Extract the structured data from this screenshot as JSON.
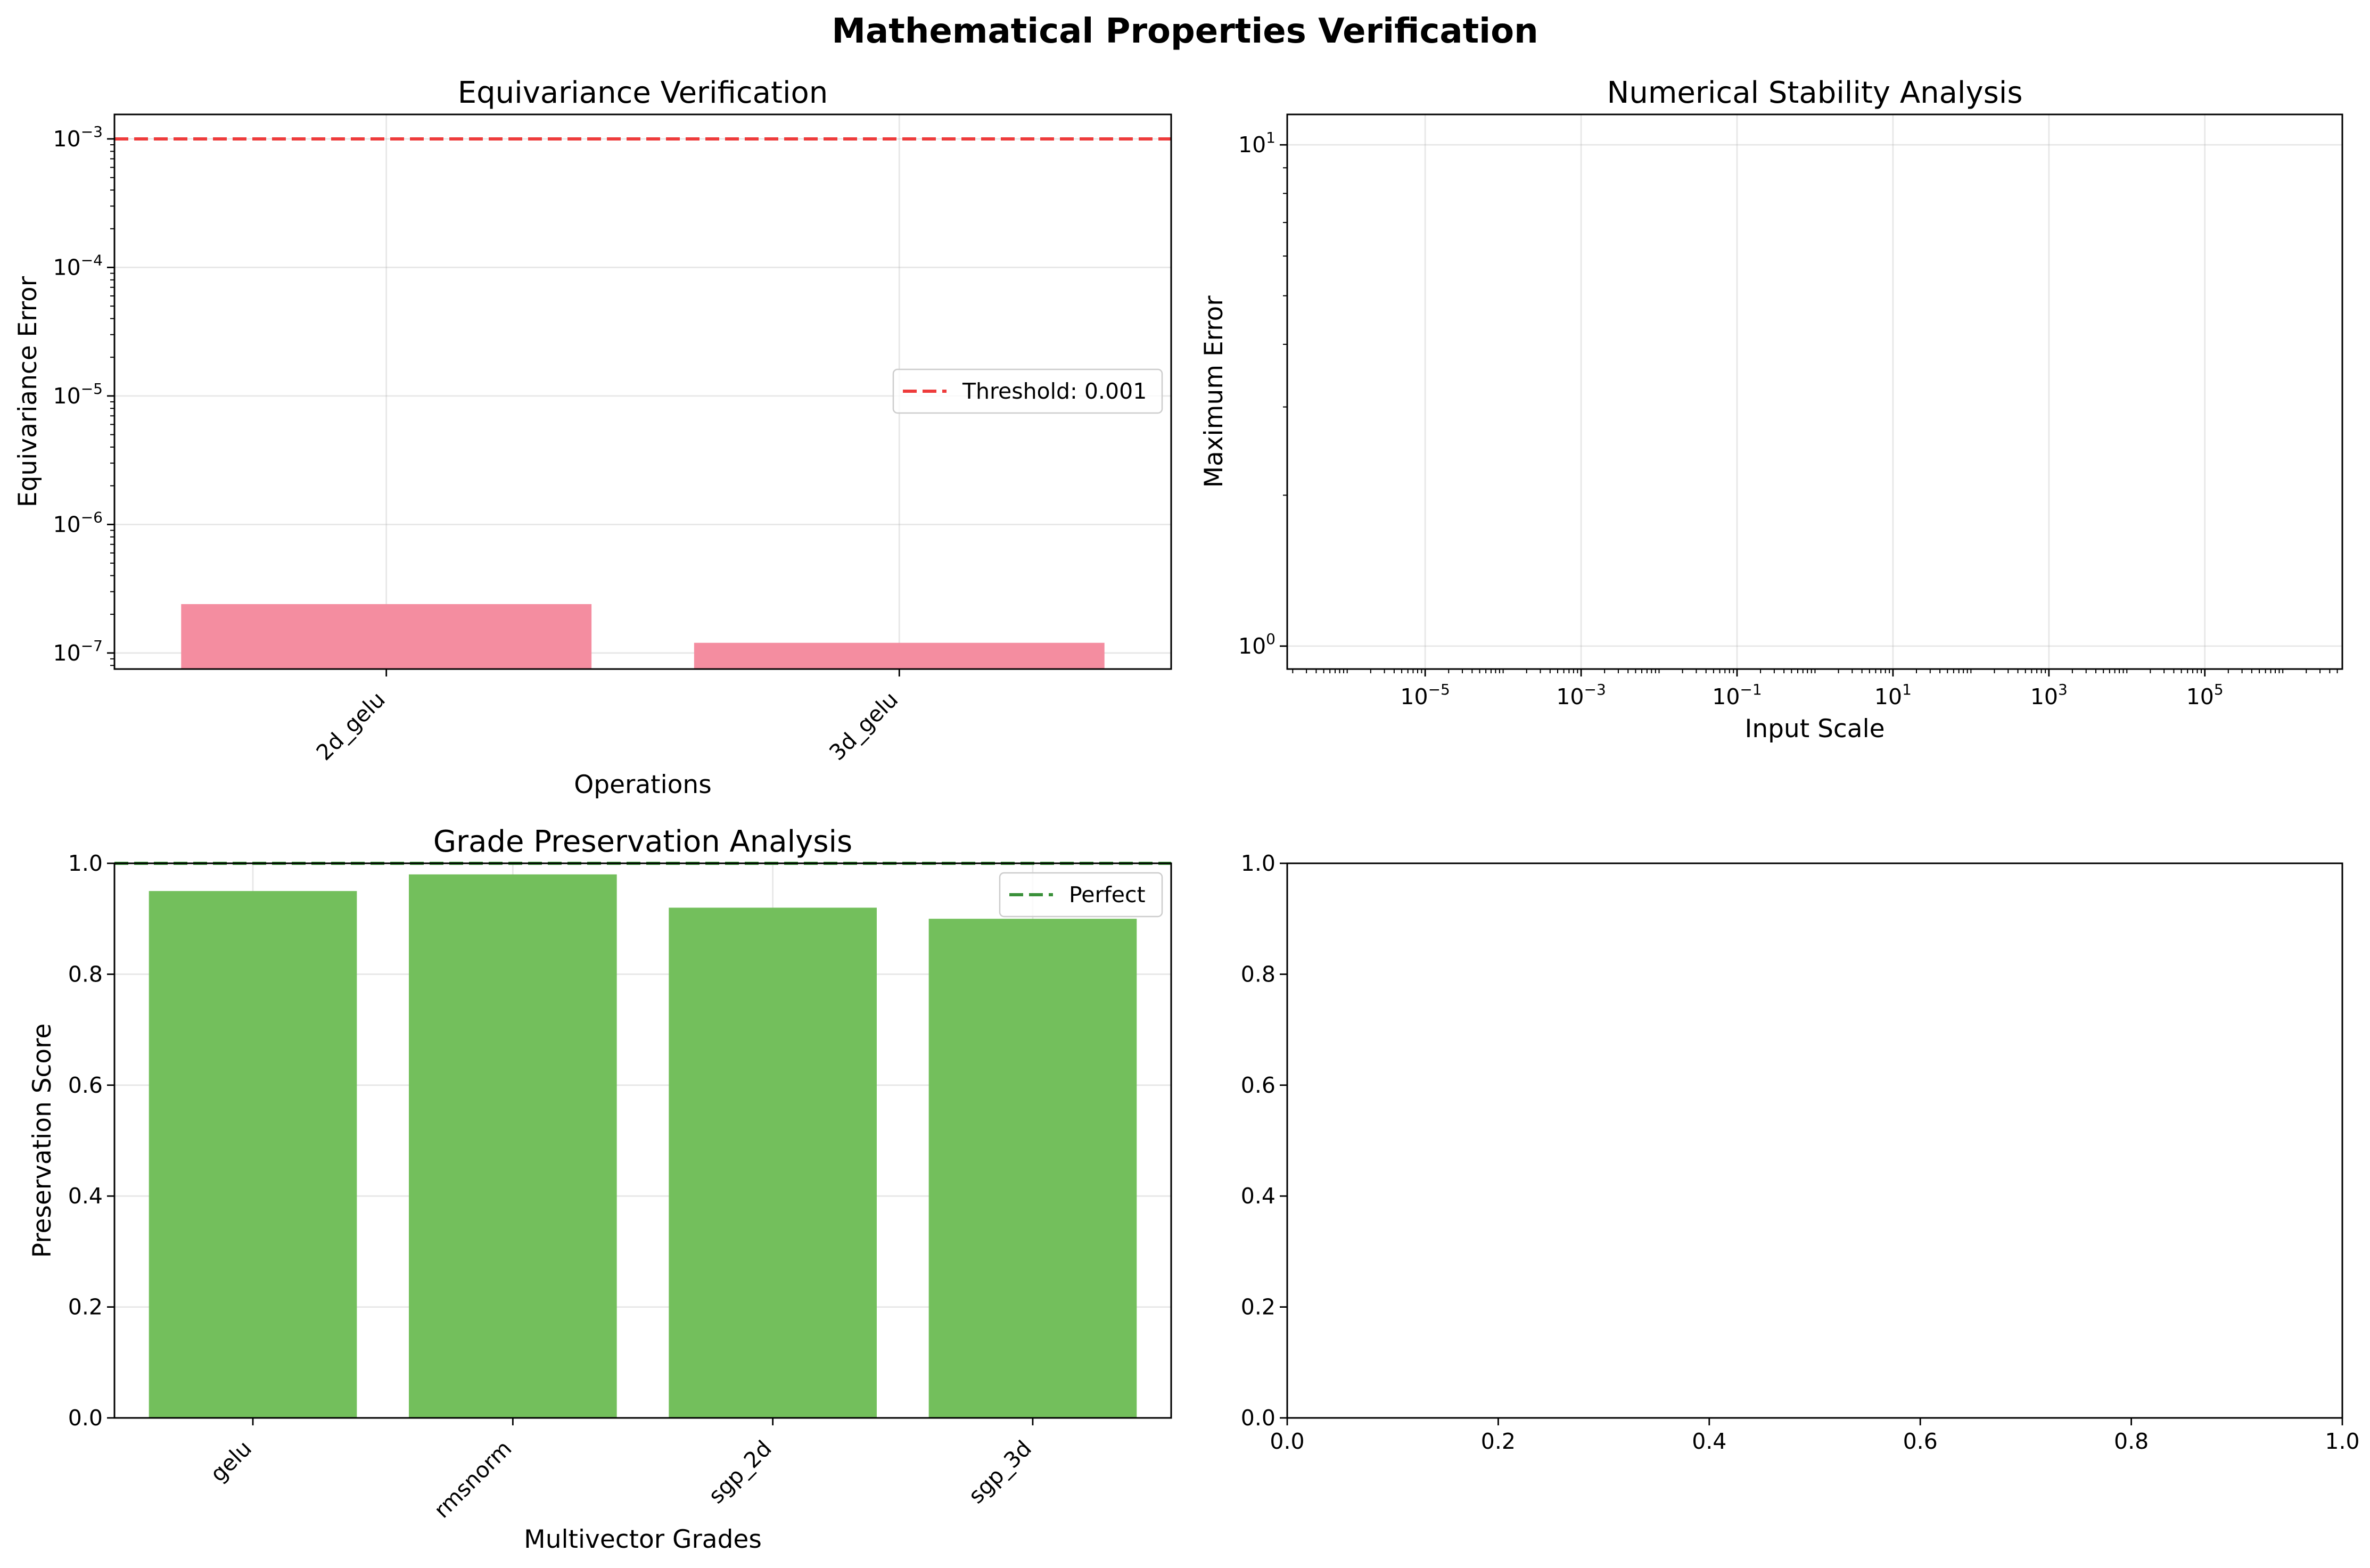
{
  "figure_title": "Mathematical Properties Verification",
  "colors": {
    "equivariance_bar": "#f48da0",
    "preservation_bar": "#73bf5c",
    "threshold_line": "#ee3b3b",
    "perfect_line": "#3a913a"
  },
  "chart_data": [
    {
      "type": "bar",
      "title": "Equivariance Verification",
      "xlabel": "Operations",
      "ylabel": "Equivariance Error",
      "yscale": "log",
      "ylim": [
        7.5e-08,
        0.00155
      ],
      "yticks": [
        "10^-7",
        "10^-6",
        "10^-5",
        "10^-4",
        "10^-3"
      ],
      "categories": [
        "2d_gelu",
        "3d_gelu"
      ],
      "values": [
        2.4e-07,
        1.2e-07
      ],
      "reference_line": {
        "label": "Threshold: 0.001",
        "value": 0.001,
        "style": "dashed"
      },
      "legend": "center-right",
      "grid": true
    },
    {
      "type": "line",
      "title": "Numerical Stability Analysis",
      "xlabel": "Input Scale",
      "ylabel": "Maximum Error",
      "xscale": "log",
      "yscale": "log",
      "xlim": [
        1.7e-07,
        5800000.0
      ],
      "ylim": [
        0.9,
        11.5
      ],
      "xticks": [
        "10^-5",
        "10^-3",
        "10^-1",
        "10^1",
        "10^3",
        "10^5"
      ],
      "yticks": [
        "10^0",
        "10^1"
      ],
      "series": [],
      "grid": true
    },
    {
      "type": "bar",
      "title": "Grade Preservation Analysis",
      "xlabel": "Multivector Grades",
      "ylabel": "Preservation Score",
      "ylim": [
        0,
        1.0
      ],
      "yticks": [
        "0.0",
        "0.2",
        "0.4",
        "0.6",
        "0.8",
        "1.0"
      ],
      "categories": [
        "gelu",
        "rmsnorm",
        "sgp_2d",
        "sgp_3d"
      ],
      "values": [
        0.95,
        0.98,
        0.92,
        0.9
      ],
      "reference_line": {
        "label": "Perfect",
        "value": 1.0,
        "style": "dashed"
      },
      "legend": "top-right",
      "grid": true
    },
    {
      "type": "empty",
      "xlim": [
        0,
        1
      ],
      "ylim": [
        0,
        1
      ],
      "xticks": [
        "0.0",
        "0.2",
        "0.4",
        "0.6",
        "0.8",
        "1.0"
      ],
      "yticks": [
        "0.0",
        "0.2",
        "0.4",
        "0.6",
        "0.8",
        "1.0"
      ]
    }
  ]
}
